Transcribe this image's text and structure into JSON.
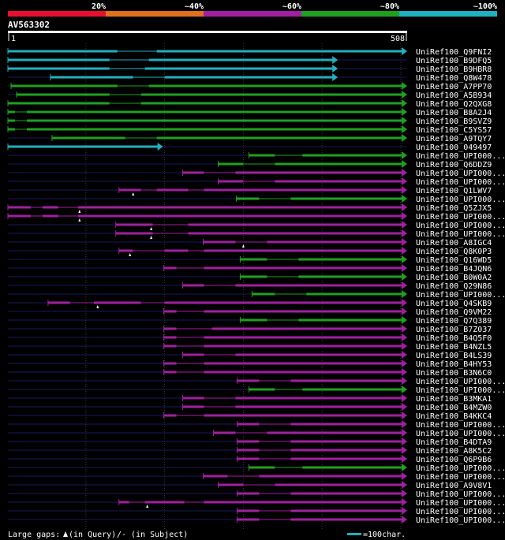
{
  "chart_data": {
    "type": "alignment-overview",
    "query_name": "AV563302",
    "query_start": 1,
    "query_end": 508,
    "identity_legend": [
      {
        "label": "",
        "color": "#e8102e"
      },
      {
        "label": "20%",
        "color": "#e07020"
      },
      {
        "label": "~40%",
        "color": "#a020a0"
      },
      {
        "label": "~60%",
        "color": "#20a020"
      },
      {
        "label": "~80%",
        "color": "#20b0c0"
      },
      {
        "label": "~100%",
        "color": ""
      }
    ],
    "hits": [
      {
        "name": "UniRef100_Q9FNI2",
        "start": 1,
        "end": 508,
        "color": "#20b0c0",
        "gaps": [
          [
            140,
            190
          ]
        ],
        "marks": []
      },
      {
        "name": "UniRef100_B9DFQ5",
        "start": 1,
        "end": 420,
        "color": "#20b0c0",
        "gaps": [
          [
            130,
            180
          ]
        ],
        "marks": []
      },
      {
        "name": "UniRef100_B9HBR8",
        "start": 1,
        "end": 420,
        "color": "#20b0c0",
        "gaps": [
          [
            130,
            175
          ]
        ],
        "marks": []
      },
      {
        "name": "UniRef100_Q8W478",
        "start": 55,
        "end": 420,
        "color": "#20b0c0",
        "gaps": [
          [
            160,
            200
          ]
        ],
        "marks": []
      },
      {
        "name": "UniRef100_A7PP70",
        "start": 5,
        "end": 508,
        "color": "#20a020",
        "gaps": [
          [
            140,
            180
          ]
        ],
        "marks": []
      },
      {
        "name": "UniRef100_A5B934",
        "start": 12,
        "end": 508,
        "color": "#20a020",
        "gaps": [
          [
            130,
            170
          ]
        ],
        "marks": []
      },
      {
        "name": "UniRef100_Q2QXG8",
        "start": 1,
        "end": 508,
        "color": "#20a020",
        "gaps": [
          [
            130,
            170
          ]
        ],
        "marks": []
      },
      {
        "name": "UniRef100_B8A2J4",
        "start": 1,
        "end": 508,
        "color": "#20a020",
        "gaps": [
          [
            10,
            25
          ]
        ],
        "marks": []
      },
      {
        "name": "UniRef100_B9SVZ9",
        "start": 1,
        "end": 508,
        "color": "#20a020",
        "gaps": [
          [
            10,
            25
          ]
        ],
        "marks": []
      },
      {
        "name": "UniRef100_C5YS57",
        "start": 1,
        "end": 508,
        "color": "#20a020",
        "gaps": [
          [
            10,
            25
          ]
        ],
        "marks": []
      },
      {
        "name": "UniRef100_A9TQY7",
        "start": 57,
        "end": 508,
        "color": "#20a020",
        "gaps": [
          [
            150,
            190
          ]
        ],
        "marks": []
      },
      {
        "name": "UniRef100_049497",
        "start": 1,
        "end": 198,
        "color": "#20b0c0",
        "gaps": [],
        "marks": []
      },
      {
        "name": "UniRef100_UPI000...",
        "start": 307,
        "end": 508,
        "color": "#20a020",
        "gaps": [
          [
            340,
            375
          ]
        ],
        "marks": []
      },
      {
        "name": "UniRef100_Q6DDZ9",
        "start": 268,
        "end": 508,
        "color": "#20a020",
        "gaps": [
          [
            300,
            340
          ]
        ],
        "marks": []
      },
      {
        "name": "UniRef100_UPI000...",
        "start": 223,
        "end": 508,
        "color": "#a020a0",
        "gaps": [
          [
            250,
            290
          ]
        ],
        "marks": []
      },
      {
        "name": "UniRef100_UPI000...",
        "start": 268,
        "end": 508,
        "color": "#a020a0",
        "gaps": [
          [
            300,
            340
          ]
        ],
        "marks": []
      },
      {
        "name": "UniRef100_Q1LWV7",
        "start": 142,
        "end": 508,
        "color": "#a020a0",
        "gaps": [
          [
            170,
            190
          ],
          [
            230,
            250
          ]
        ],
        "marks": [
          160
        ]
      },
      {
        "name": "UniRef100_UPI000...",
        "start": 291,
        "end": 508,
        "color": "#20a020",
        "gaps": [
          [
            320,
            360
          ]
        ],
        "marks": []
      },
      {
        "name": "UniRef100_Q5ZJX5",
        "start": 1,
        "end": 508,
        "color": "#a020a0",
        "gaps": [
          [
            30,
            45
          ],
          [
            65,
            90
          ]
        ],
        "marks": [
          92
        ]
      },
      {
        "name": "UniRef100_UPI000...",
        "start": 1,
        "end": 508,
        "color": "#a020a0",
        "gaps": [
          [
            30,
            45
          ],
          [
            65,
            90
          ]
        ],
        "marks": [
          92
        ]
      },
      {
        "name": "UniRef100_UPI000...",
        "start": 138,
        "end": 508,
        "color": "#a020a0",
        "gaps": [
          [
            185,
            230
          ]
        ],
        "marks": [
          183
        ]
      },
      {
        "name": "UniRef100_UPI000...",
        "start": 138,
        "end": 508,
        "color": "#a020a0",
        "gaps": [
          [
            185,
            230
          ]
        ],
        "marks": [
          183
        ]
      },
      {
        "name": "UniRef100_A8IGC4",
        "start": 249,
        "end": 508,
        "color": "#a020a0",
        "gaps": [
          [
            290,
            330
          ]
        ],
        "marks": [
          300
        ]
      },
      {
        "name": "UniRef100_Q8K0P3",
        "start": 142,
        "end": 508,
        "color": "#a020a0",
        "gaps": [
          [
            160,
            200
          ],
          [
            230,
            250
          ]
        ],
        "marks": [
          156
        ]
      },
      {
        "name": "UniRef100_Q16WD5",
        "start": 296,
        "end": 508,
        "color": "#20a020",
        "gaps": [
          [
            330,
            370
          ]
        ],
        "marks": []
      },
      {
        "name": "UniRef100_B4JQN6",
        "start": 199,
        "end": 508,
        "color": "#a020a0",
        "gaps": [
          [
            215,
            250
          ]
        ],
        "marks": []
      },
      {
        "name": "UniRef100_B0W0A2",
        "start": 296,
        "end": 508,
        "color": "#20a020",
        "gaps": [
          [
            330,
            370
          ]
        ],
        "marks": []
      },
      {
        "name": "UniRef100_Q29N86",
        "start": 223,
        "end": 508,
        "color": "#a020a0",
        "gaps": [
          [
            250,
            290
          ]
        ],
        "marks": []
      },
      {
        "name": "UniRef100_UPI000...",
        "start": 311,
        "end": 508,
        "color": "#20a020",
        "gaps": [
          [
            340,
            380
          ]
        ],
        "marks": []
      },
      {
        "name": "UniRef100_Q4SKB9",
        "start": 52,
        "end": 508,
        "color": "#a020a0",
        "gaps": [
          [
            80,
            110
          ],
          [
            170,
            200
          ]
        ],
        "marks": [
          115
        ]
      },
      {
        "name": "UniRef100_Q9VM22",
        "start": 199,
        "end": 508,
        "color": "#a020a0",
        "gaps": [
          [
            215,
            250
          ]
        ],
        "marks": []
      },
      {
        "name": "UniRef100_Q7Q389",
        "start": 296,
        "end": 508,
        "color": "#20a020",
        "gaps": [
          [
            330,
            370
          ]
        ],
        "marks": []
      },
      {
        "name": "UniRef100_B7Z037",
        "start": 199,
        "end": 508,
        "color": "#a020a0",
        "gaps": [
          [
            215,
            260
          ]
        ],
        "marks": []
      },
      {
        "name": "UniRef100_B4Q5F0",
        "start": 199,
        "end": 508,
        "color": "#a020a0",
        "gaps": [
          [
            215,
            250
          ]
        ],
        "marks": []
      },
      {
        "name": "UniRef100_B4NZL5",
        "start": 199,
        "end": 508,
        "color": "#a020a0",
        "gaps": [
          [
            215,
            250
          ]
        ],
        "marks": []
      },
      {
        "name": "UniRef100_B4LS39",
        "start": 223,
        "end": 508,
        "color": "#a020a0",
        "gaps": [
          [
            250,
            290
          ]
        ],
        "marks": []
      },
      {
        "name": "UniRef100_B4HY53",
        "start": 199,
        "end": 508,
        "color": "#a020a0",
        "gaps": [
          [
            215,
            250
          ]
        ],
        "marks": []
      },
      {
        "name": "UniRef100_B3N6C0",
        "start": 199,
        "end": 508,
        "color": "#a020a0",
        "gaps": [
          [
            215,
            250
          ]
        ],
        "marks": []
      },
      {
        "name": "UniRef100_UPI000...",
        "start": 292,
        "end": 508,
        "color": "#a020a0",
        "gaps": [
          [
            320,
            360
          ]
        ],
        "marks": []
      },
      {
        "name": "UniRef100_UPI000...",
        "start": 307,
        "end": 508,
        "color": "#20a020",
        "gaps": [
          [
            340,
            375
          ]
        ],
        "marks": []
      },
      {
        "name": "UniRef100_B3MKA1",
        "start": 223,
        "end": 508,
        "color": "#a020a0",
        "gaps": [
          [
            250,
            290
          ]
        ],
        "marks": []
      },
      {
        "name": "UniRef100_B4MZW0",
        "start": 223,
        "end": 508,
        "color": "#a020a0",
        "gaps": [
          [
            250,
            290
          ]
        ],
        "marks": []
      },
      {
        "name": "UniRef100_B4KKC4",
        "start": 199,
        "end": 508,
        "color": "#a020a0",
        "gaps": [
          [
            215,
            250
          ]
        ],
        "marks": []
      },
      {
        "name": "UniRef100_UPI000...",
        "start": 292,
        "end": 508,
        "color": "#a020a0",
        "gaps": [
          [
            320,
            360
          ]
        ],
        "marks": []
      },
      {
        "name": "UniRef100_UPI000...",
        "start": 262,
        "end": 508,
        "color": "#a020a0",
        "gaps": [
          [
            290,
            330
          ]
        ],
        "marks": []
      },
      {
        "name": "UniRef100_B4DTA9",
        "start": 292,
        "end": 508,
        "color": "#a020a0",
        "gaps": [
          [
            320,
            360
          ]
        ],
        "marks": []
      },
      {
        "name": "UniRef100_A8K5C2",
        "start": 292,
        "end": 508,
        "color": "#a020a0",
        "gaps": [
          [
            320,
            360
          ]
        ],
        "marks": []
      },
      {
        "name": "UniRef100_Q6P9B6",
        "start": 292,
        "end": 508,
        "color": "#a020a0",
        "gaps": [
          [
            320,
            360
          ]
        ],
        "marks": []
      },
      {
        "name": "UniRef100_UPI000...",
        "start": 307,
        "end": 508,
        "color": "#20a020",
        "gaps": [
          [
            340,
            375
          ]
        ],
        "marks": []
      },
      {
        "name": "UniRef100_UPI000...",
        "start": 249,
        "end": 508,
        "color": "#a020a0",
        "gaps": [
          [
            280,
            320
          ]
        ],
        "marks": []
      },
      {
        "name": "UniRef100_A9V8V1",
        "start": 268,
        "end": 508,
        "color": "#a020a0",
        "gaps": [
          [
            300,
            340
          ]
        ],
        "marks": []
      },
      {
        "name": "UniRef100_UPI000...",
        "start": 292,
        "end": 508,
        "color": "#a020a0",
        "gaps": [
          [
            320,
            360
          ]
        ],
        "marks": []
      },
      {
        "name": "UniRef100_UPI000...",
        "start": 142,
        "end": 508,
        "color": "#a020a0",
        "gaps": [
          [
            155,
            175
          ],
          [
            225,
            250
          ]
        ],
        "marks": [
          178
        ]
      },
      {
        "name": "UniRef100_UPI000...",
        "start": 292,
        "end": 508,
        "color": "#a020a0",
        "gaps": [
          [
            320,
            360
          ]
        ],
        "marks": []
      },
      {
        "name": "UniRef100_UPI000...",
        "start": 292,
        "end": 508,
        "color": "#a020a0",
        "gaps": [
          [
            320,
            360
          ]
        ],
        "marks": []
      }
    ],
    "footer": {
      "gaps_label": "Large gaps:",
      "gaps_query": "(in Query)",
      "gaps_subject": "/- (in Subject)",
      "scale_label": "=100char."
    }
  }
}
